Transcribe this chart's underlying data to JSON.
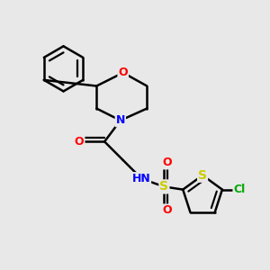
{
  "background_color": "#e8e8e8",
  "bond_color": "#000000",
  "atom_colors": {
    "O": "#ff0000",
    "N": "#0000ff",
    "S": "#cccc00",
    "Cl": "#00aa00",
    "C": "#000000",
    "H": "#444444"
  },
  "figsize": [
    3.0,
    3.0
  ],
  "dpi": 100,
  "xlim": [
    0,
    10
  ],
  "ylim": [
    0,
    10
  ]
}
